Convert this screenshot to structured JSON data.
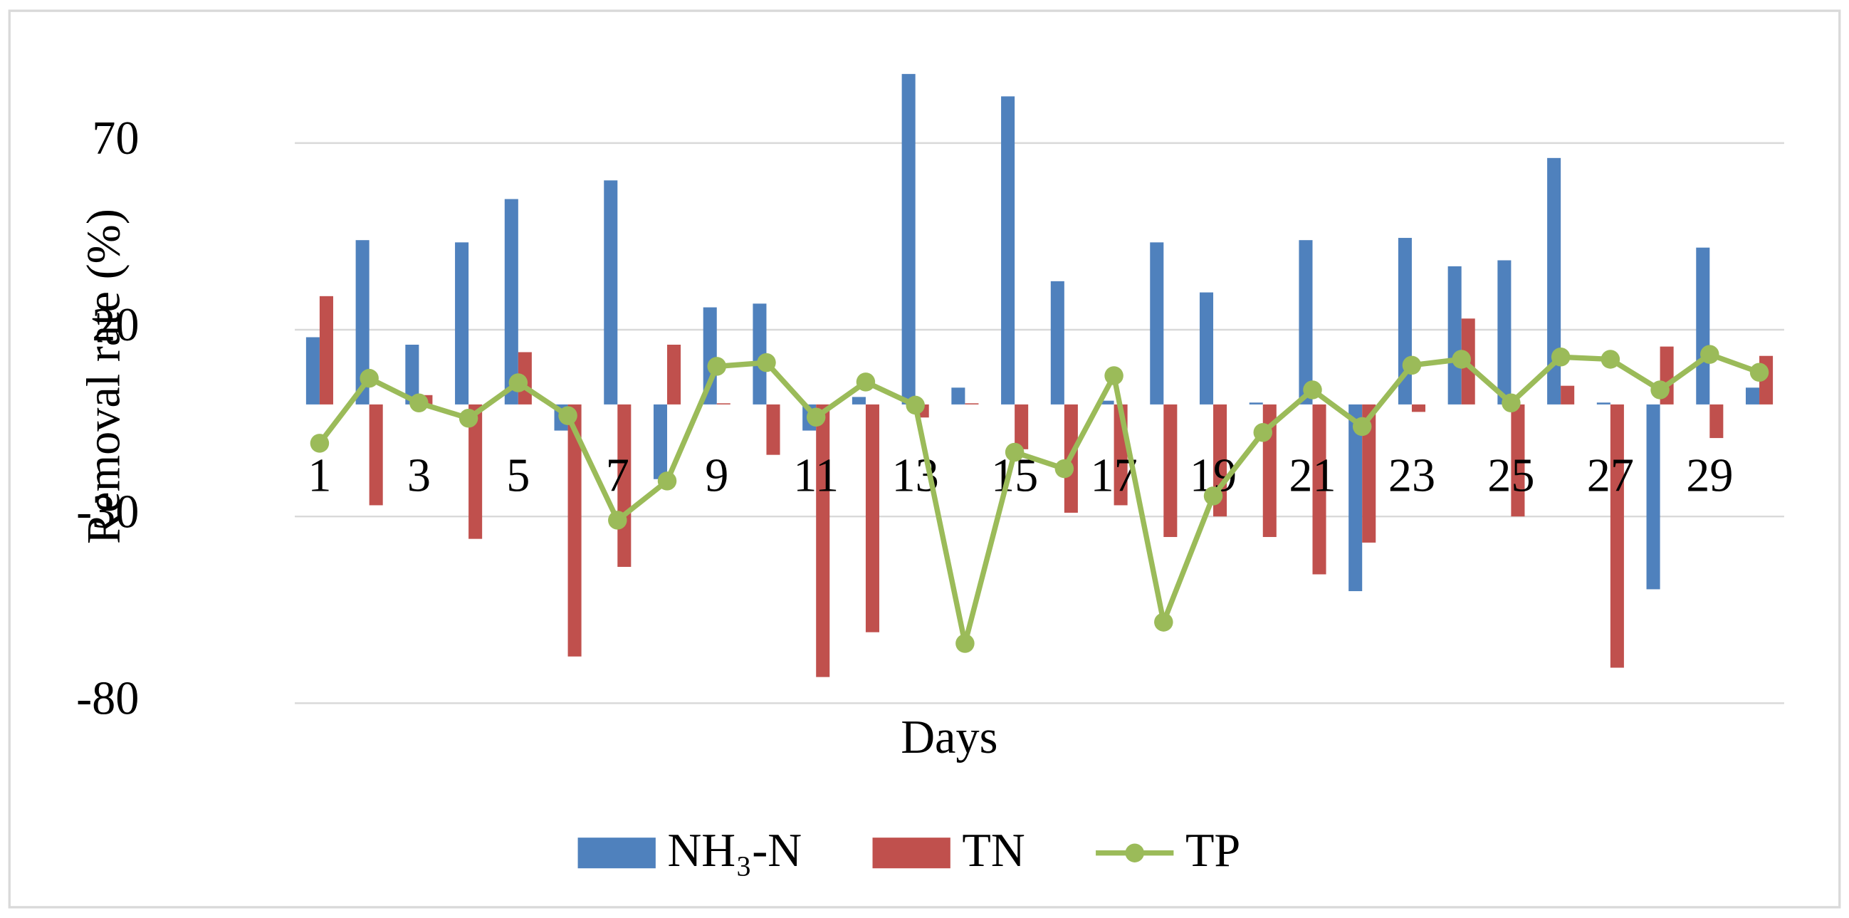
{
  "chart_data": {
    "type": "bar-line",
    "y_label": "Removal rate (%)",
    "x_label": "Days",
    "categories": [
      1,
      null,
      3,
      null,
      5,
      null,
      7,
      null,
      9,
      null,
      11,
      null,
      13,
      null,
      15,
      null,
      17,
      null,
      19,
      null,
      21,
      null,
      23,
      null,
      25,
      null,
      27,
      null,
      29,
      null
    ],
    "series": [
      {
        "name": "NH₃-N",
        "type": "bar",
        "color": "#4f81bd",
        "values": [
          18,
          44,
          16,
          43.4,
          55,
          -7,
          60,
          -20,
          26,
          27,
          -7,
          2,
          88.5,
          4.5,
          82.5,
          33,
          1,
          43.4,
          30,
          0.5,
          44,
          -50,
          44.6,
          37,
          38.6,
          66,
          0.5,
          -49.5,
          42,
          4.5
        ]
      },
      {
        "name": "TN",
        "type": "bar",
        "color": "#c0504d",
        "values": [
          29,
          -27,
          2.5,
          -36,
          14,
          -67.5,
          -43.5,
          16,
          0.3,
          -13.5,
          -73,
          -61,
          -3.5,
          0.3,
          -12,
          -29,
          -27,
          -35.5,
          -30,
          -35.5,
          -45.5,
          -37,
          -2,
          23,
          -30,
          5,
          -70.5,
          15.5,
          -9,
          13
        ]
      },
      {
        "name": "TP",
        "type": "line",
        "color": "#9bbb59",
        "values": [
          -10.4,
          7,
          0.4,
          -3.7,
          5.8,
          -3,
          -31,
          -20.5,
          10.2,
          11.2,
          -3.4,
          6,
          -0.2,
          -64,
          -12.8,
          -17.2,
          7.7,
          -58.3,
          -24.5,
          -7.5,
          3.9,
          -5.9,
          10.5,
          12.1,
          0.4,
          12.7,
          12.1,
          3.9,
          13.4,
          8.6
        ]
      }
    ],
    "ylim": [
      -80,
      95
    ],
    "yticks": [
      -80,
      -30,
      20,
      70
    ],
    "grid": true,
    "legend": "bottom"
  }
}
